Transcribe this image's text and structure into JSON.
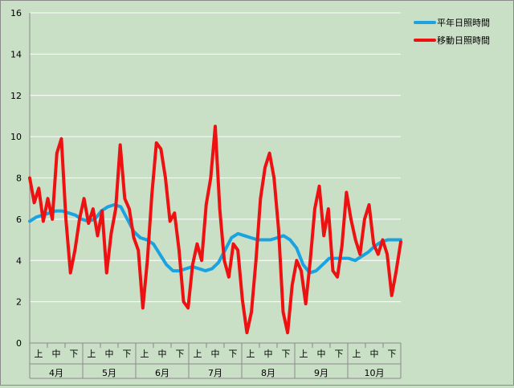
{
  "chart_data": {
    "type": "line",
    "title": "",
    "xlabel": "",
    "ylabel": "",
    "ylim": [
      0,
      16
    ],
    "yticks": [
      0,
      2,
      4,
      6,
      8,
      10,
      12,
      14,
      16
    ],
    "grid": "horizontal",
    "legend_position": "top-right",
    "months": [
      "4月",
      "5月",
      "6月",
      "7月",
      "8月",
      "9月",
      "10月"
    ],
    "dekads": [
      "上",
      "中",
      "下"
    ],
    "series": [
      {
        "name": "平年日照時間",
        "color": "#1aa3e0",
        "values": [
          5.9,
          6.1,
          6.2,
          6.3,
          6.4,
          6.4,
          6.3,
          6.2,
          6.0,
          5.9,
          6.0,
          6.4,
          6.6,
          6.7,
          6.6,
          6.0,
          5.4,
          5.1,
          5.0,
          4.8,
          4.3,
          3.8,
          3.5,
          3.5,
          3.6,
          3.7,
          3.6,
          3.5,
          3.6,
          3.9,
          4.5,
          5.1,
          5.3,
          5.2,
          5.1,
          5.0,
          5.0,
          5.0,
          5.1,
          5.2,
          5.0,
          4.6,
          3.8,
          3.4,
          3.5,
          3.8,
          4.1,
          4.1,
          4.1,
          4.1,
          4.0,
          4.2,
          4.4,
          4.7,
          4.9,
          5.0,
          5.0,
          5.0
        ]
      },
      {
        "name": "移動日照時間",
        "color": "#ee1111",
        "values": [
          8.0,
          6.8,
          7.5,
          5.9,
          7.0,
          6.0,
          9.2,
          9.9,
          6.0,
          3.4,
          4.5,
          6.0,
          7.0,
          5.8,
          6.5,
          5.2,
          6.4,
          3.4,
          5.3,
          6.5,
          9.6,
          7.0,
          6.5,
          5.1,
          4.5,
          1.7,
          4.0,
          7.2,
          9.7,
          9.4,
          8.0,
          5.9,
          6.3,
          4.5,
          2.0,
          1.7,
          3.8,
          4.8,
          4.0,
          6.7,
          8.0,
          10.5,
          6.5,
          4.0,
          3.2,
          4.8,
          4.5,
          2.1,
          0.5,
          1.5,
          4.0,
          7.0,
          8.5,
          9.2,
          8.0,
          5.5,
          1.5,
          0.5,
          2.8,
          4.0,
          3.5,
          1.9,
          4.0,
          6.5,
          7.6,
          5.2,
          6.5,
          3.5,
          3.2,
          4.7,
          7.3,
          6.0,
          5.0,
          4.3,
          6.0,
          6.7,
          4.8,
          4.3,
          5.0,
          4.3,
          2.3,
          3.5,
          4.9
        ]
      }
    ]
  }
}
